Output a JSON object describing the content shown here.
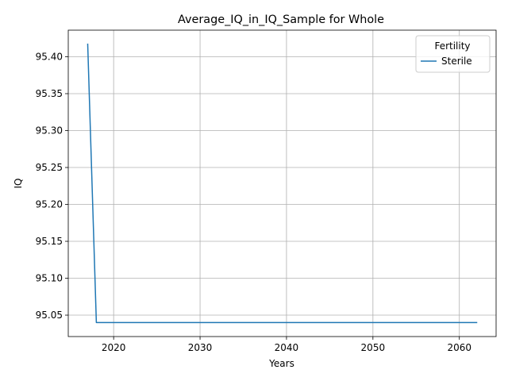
{
  "chart_data": {
    "type": "line",
    "title": "Average_IQ_in_IQ_Sample for Whole",
    "xlabel": "Years",
    "ylabel": "IQ",
    "xlim": [
      2014.75,
      2064.25
    ],
    "ylim": [
      95.021,
      95.436
    ],
    "xticks": [
      2020,
      2030,
      2040,
      2050,
      2060
    ],
    "xtick_labels": [
      "2020",
      "2030",
      "2040",
      "2050",
      "2060"
    ],
    "yticks": [
      95.05,
      95.1,
      95.15,
      95.2,
      95.25,
      95.3,
      95.35,
      95.4
    ],
    "ytick_labels": [
      "95.05",
      "95.10",
      "95.15",
      "95.20",
      "95.25",
      "95.30",
      "95.35",
      "95.40"
    ],
    "grid": true,
    "legend": {
      "title": "Fertility",
      "placement": "top-right"
    },
    "series": [
      {
        "name": "Sterile",
        "color": "#1f77b4",
        "x": [
          2017,
          2018,
          2019,
          2020,
          2021,
          2022,
          2023,
          2024,
          2025,
          2026,
          2027,
          2028,
          2029,
          2030,
          2031,
          2032,
          2033,
          2034,
          2035,
          2036,
          2037,
          2038,
          2039,
          2040,
          2041,
          2042,
          2043,
          2044,
          2045,
          2046,
          2047,
          2048,
          2049,
          2050,
          2051,
          2052,
          2053,
          2054,
          2055,
          2056,
          2057,
          2058,
          2059,
          2060,
          2061,
          2062
        ],
        "y": [
          95.417,
          95.04,
          95.04,
          95.04,
          95.04,
          95.04,
          95.04,
          95.04,
          95.04,
          95.04,
          95.04,
          95.04,
          95.04,
          95.04,
          95.04,
          95.04,
          95.04,
          95.04,
          95.04,
          95.04,
          95.04,
          95.04,
          95.04,
          95.04,
          95.04,
          95.04,
          95.04,
          95.04,
          95.04,
          95.04,
          95.04,
          95.04,
          95.04,
          95.04,
          95.04,
          95.04,
          95.04,
          95.04,
          95.04,
          95.04,
          95.04,
          95.04,
          95.04,
          95.04,
          95.04,
          95.04
        ]
      }
    ]
  }
}
